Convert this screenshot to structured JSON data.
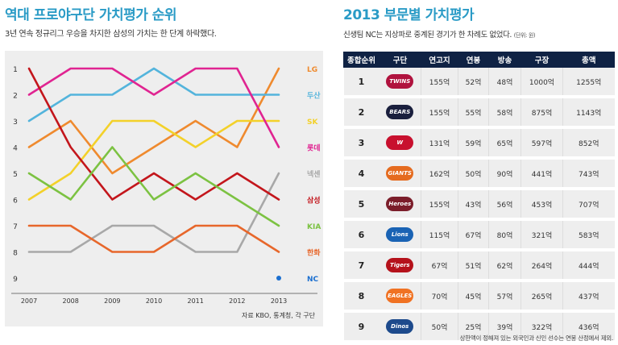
{
  "left": {
    "title": "역대 프로야구단 가치평가 순위",
    "subtitle": "3년 연속 정규리그 우승을 차지한 삼성의 가치는 한 단계 하락했다.",
    "source": "자료 KBO, 통계청, 각 구단"
  },
  "chart_data": {
    "type": "line",
    "title": "역대 프로야구단 가치평가 순위",
    "x": [
      "2007",
      "2008",
      "2009",
      "2010",
      "2011",
      "2012",
      "2013"
    ],
    "y_ticks": [
      "1",
      "2",
      "3",
      "4",
      "5",
      "6",
      "7",
      "8",
      "9"
    ],
    "ylim": [
      1,
      9
    ],
    "y_inverted": true,
    "grid": false,
    "legend": "right",
    "series": [
      {
        "name": "LG",
        "color": "#ef8a2e",
        "values": [
          4,
          3,
          5,
          4,
          3,
          4,
          1
        ]
      },
      {
        "name": "두산",
        "color": "#53b4dc",
        "values": [
          3,
          2,
          2,
          1,
          2,
          2,
          2
        ]
      },
      {
        "name": "SK",
        "color": "#f3d12a",
        "values": [
          6,
          5,
          3,
          3,
          4,
          3,
          3
        ]
      },
      {
        "name": "롯데",
        "color": "#e02491",
        "values": [
          2,
          1,
          1,
          2,
          1,
          1,
          4
        ]
      },
      {
        "name": "넥센",
        "color": "#a8a8a8",
        "values": [
          8,
          8,
          7,
          7,
          8,
          8,
          5
        ]
      },
      {
        "name": "삼성",
        "color": "#c3161c",
        "values": [
          1,
          4,
          6,
          5,
          6,
          5,
          6
        ]
      },
      {
        "name": "KIA",
        "color": "#7cc242",
        "values": [
          5,
          6,
          4,
          6,
          5,
          6,
          7
        ]
      },
      {
        "name": "한화",
        "color": "#e7672b",
        "values": [
          7,
          7,
          8,
          8,
          7,
          7,
          8
        ]
      },
      {
        "name": "NC",
        "color": "#1b6fd0",
        "values": [
          null,
          null,
          null,
          null,
          null,
          null,
          9
        ]
      }
    ]
  },
  "right": {
    "title": "2013 부문별 가치평가",
    "subtitle": "신생팀 NC는 지상파로 중계된 경기가 한 차례도 없었다.",
    "unit": "(단위: 원)",
    "columns": [
      "종합순위",
      "구단",
      "연고지",
      "연봉",
      "방송",
      "구장",
      "총액"
    ],
    "rows": [
      {
        "rank": "1",
        "team": "TWINS",
        "color": "#b0123e",
        "c1": "155억",
        "c2": "52억",
        "c3": "48억",
        "c4": "1000억",
        "total": "1255억"
      },
      {
        "rank": "2",
        "team": "BEARS",
        "color": "#1a1f3d",
        "c1": "155억",
        "c2": "55억",
        "c3": "58억",
        "c4": "875억",
        "total": "1143억"
      },
      {
        "rank": "3",
        "team": "W",
        "color": "#c8102e",
        "c1": "131억",
        "c2": "59억",
        "c3": "65억",
        "c4": "597억",
        "total": "852억"
      },
      {
        "rank": "4",
        "team": "GIANTS",
        "color": "#e56b1f",
        "c1": "162억",
        "c2": "50억",
        "c3": "90억",
        "c4": "441억",
        "total": "743억"
      },
      {
        "rank": "5",
        "team": "Heroes",
        "color": "#7b1d2a",
        "c1": "155억",
        "c2": "43억",
        "c3": "56억",
        "c4": "453억",
        "total": "707억"
      },
      {
        "rank": "6",
        "team": "Lions",
        "color": "#1a63b4",
        "c1": "115억",
        "c2": "67억",
        "c3": "80억",
        "c4": "321억",
        "total": "583억"
      },
      {
        "rank": "7",
        "team": "Tigers",
        "color": "#b5121b",
        "c1": "67억",
        "c2": "51억",
        "c3": "62억",
        "c4": "264억",
        "total": "444억"
      },
      {
        "rank": "8",
        "team": "EAGLES",
        "color": "#f07223",
        "c1": "70억",
        "c2": "45억",
        "c3": "57억",
        "c4": "265억",
        "total": "437억"
      },
      {
        "rank": "9",
        "team": "Dinos",
        "color": "#1d4a8c",
        "c1": "50억",
        "c2": "25억",
        "c3": "39억",
        "c4": "322억",
        "total": "436억"
      }
    ],
    "footnote": "상한액이 정해져 있는 외국인과 신인 선수는 연봉 산정에서 제외."
  }
}
